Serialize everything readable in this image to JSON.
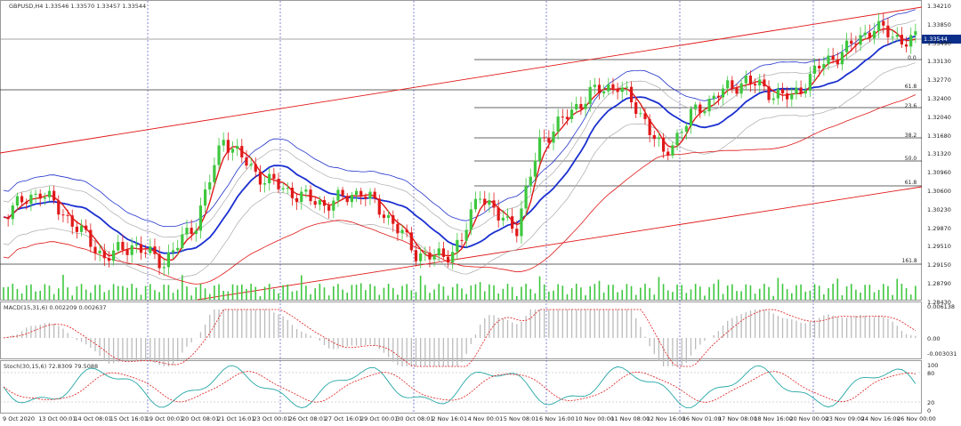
{
  "title": "GBPUSD,H4  1.33546 1.33570 1.33457 1.33544",
  "current_price": "1.33544",
  "price_axis": [
    "1.34210",
    "1.33850",
    "1.33490",
    "1.33130",
    "1.32770",
    "1.32400",
    "1.32040",
    "1.31680",
    "1.31320",
    "1.30960",
    "1.30600",
    "1.30230",
    "1.29870",
    "1.29510",
    "1.29150",
    "1.28790",
    "1.28430"
  ],
  "fib_levels": [
    "0.0",
    "61.8",
    "23.6",
    "38.2",
    "50.0",
    "61.8",
    "161.8"
  ],
  "macd": {
    "label": "MACD(15,31,6) 0.002209 0.002637",
    "axis": [
      "0.006138",
      "0.00",
      "-0.003031"
    ]
  },
  "stoch": {
    "label": "Stoch(30,15,6) 72.8309 79.5088",
    "axis": [
      "100",
      "80",
      "20",
      "0"
    ]
  },
  "time_axis": [
    "9 Oct 2020",
    "13 Oct 00:01",
    "14 Oct 08:01",
    "15 Oct 16:01",
    "19 Oct 00:01",
    "20 Oct 08:01",
    "21 Oct 16:01",
    "23 Oct 00:01",
    "26 Oct 08:01",
    "27 Oct 16:01",
    "29 Oct 00:01",
    "30 Oct 08:01",
    "2 Nov 16:01",
    "4 Nov 00:01",
    "5 Nov 08:01",
    "6 Nov 16:00",
    "10 Nov 00:00",
    "11 Nov 08:00",
    "12 Nov 16:00",
    "16 Nov 01:00",
    "17 Nov 08:00",
    "18 Nov 16:00",
    "20 Nov 00:00",
    "23 Nov 09:00",
    "24 Nov 16:00",
    "26 Nov 00:00"
  ],
  "colors": {
    "bull": "#3ec73e",
    "bear": "#e01818",
    "ma_fast": "#e01818",
    "ma_slow": "#1a2fd0",
    "band": "#2233cc",
    "env": "#e01818",
    "grid": "#6a6ad0"
  }
}
